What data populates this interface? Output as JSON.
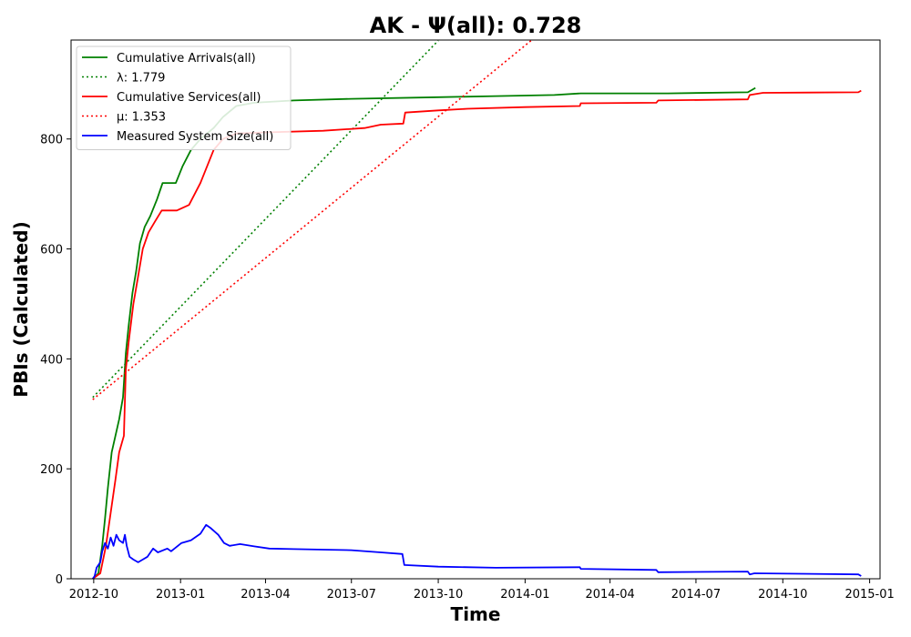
{
  "chart_data": {
    "type": "line",
    "title": "AK -  Ψ(all): 0.728",
    "xlabel": "Time",
    "ylabel": "PBIs (Calculated)",
    "xlim": [
      "2012-09-07",
      "2015-01-12"
    ],
    "ylim": [
      0,
      980
    ],
    "x_ticks": [
      "2012-10",
      "2013-01",
      "2013-04",
      "2013-07",
      "2013-10",
      "2014-01",
      "2014-04",
      "2014-07",
      "2014-10",
      "2015-01"
    ],
    "y_ticks": [
      0,
      200,
      400,
      600,
      800
    ],
    "grid": false,
    "legend_position": "upper-left",
    "series": [
      {
        "name": "Cumulative Arrivals(all)",
        "color": "#008000",
        "style": "solid",
        "points": [
          [
            "2012-09-30",
            0
          ],
          [
            "2012-10-06",
            10
          ],
          [
            "2012-10-10",
            60
          ],
          [
            "2012-10-13",
            110
          ],
          [
            "2012-10-16",
            165
          ],
          [
            "2012-10-20",
            230
          ],
          [
            "2012-10-24",
            260
          ],
          [
            "2012-10-28",
            290
          ],
          [
            "2012-11-01",
            330
          ],
          [
            "2012-11-04",
            410
          ],
          [
            "2012-11-07",
            460
          ],
          [
            "2012-11-11",
            520
          ],
          [
            "2012-11-15",
            560
          ],
          [
            "2012-11-19",
            610
          ],
          [
            "2012-11-24",
            640
          ],
          [
            "2012-11-30",
            660
          ],
          [
            "2012-12-07",
            690
          ],
          [
            "2012-12-13",
            720
          ],
          [
            "2012-12-27",
            720
          ],
          [
            "2013-01-03",
            750
          ],
          [
            "2013-01-12",
            780
          ],
          [
            "2013-01-22",
            800
          ],
          [
            "2013-02-05",
            820
          ],
          [
            "2013-02-15",
            840
          ],
          [
            "2013-03-01",
            860
          ],
          [
            "2013-03-20",
            866
          ],
          [
            "2013-05-01",
            870
          ],
          [
            "2013-07-01",
            873
          ],
          [
            "2013-10-01",
            876
          ],
          [
            "2013-12-01",
            878
          ],
          [
            "2014-02-01",
            880
          ],
          [
            "2014-03-01",
            883
          ],
          [
            "2014-06-01",
            883
          ],
          [
            "2014-08-25",
            885
          ],
          [
            "2014-09-02",
            893
          ]
        ]
      },
      {
        "name": "λ: 1.779",
        "color": "#008000",
        "style": "dotted",
        "points": [
          [
            "2012-09-30",
            330
          ],
          [
            "2013-10-01",
            979
          ]
        ]
      },
      {
        "name": "Cumulative Services(all)",
        "color": "#ff0000",
        "style": "solid",
        "points": [
          [
            "2012-09-30",
            0
          ],
          [
            "2012-10-08",
            10
          ],
          [
            "2012-10-14",
            60
          ],
          [
            "2012-10-19",
            120
          ],
          [
            "2012-10-24",
            180
          ],
          [
            "2012-10-28",
            230
          ],
          [
            "2012-11-02",
            260
          ],
          [
            "2012-11-04",
            380
          ],
          [
            "2012-11-07",
            430
          ],
          [
            "2012-11-12",
            500
          ],
          [
            "2012-11-17",
            550
          ],
          [
            "2012-11-22",
            600
          ],
          [
            "2012-11-28",
            630
          ],
          [
            "2012-12-05",
            650
          ],
          [
            "2012-12-12",
            670
          ],
          [
            "2012-12-28",
            670
          ],
          [
            "2013-01-10",
            680
          ],
          [
            "2013-01-22",
            720
          ],
          [
            "2013-02-05",
            780
          ],
          [
            "2013-02-15",
            800
          ],
          [
            "2013-03-01",
            810
          ],
          [
            "2013-04-01",
            812
          ],
          [
            "2013-06-01",
            815
          ],
          [
            "2013-07-15",
            820
          ],
          [
            "2013-08-01",
            826
          ],
          [
            "2013-08-25",
            828
          ],
          [
            "2013-08-27",
            848
          ],
          [
            "2013-10-01",
            852
          ],
          [
            "2013-11-01",
            855
          ],
          [
            "2014-01-01",
            858
          ],
          [
            "2014-02-28",
            860
          ],
          [
            "2014-03-01",
            865
          ],
          [
            "2014-05-20",
            866
          ],
          [
            "2014-05-22",
            870
          ],
          [
            "2014-08-25",
            872
          ],
          [
            "2014-08-27",
            880
          ],
          [
            "2014-09-10",
            884
          ],
          [
            "2014-12-20",
            885
          ],
          [
            "2014-12-23",
            888
          ]
        ]
      },
      {
        "name": "μ: 1.353",
        "color": "#ff0000",
        "style": "dotted",
        "points": [
          [
            "2012-09-30",
            326
          ],
          [
            "2014-01-08",
            980
          ]
        ]
      },
      {
        "name": "Measured System Size(all)",
        "color": "#0000ff",
        "style": "solid",
        "points": [
          [
            "2012-09-30",
            0
          ],
          [
            "2012-10-02",
            5
          ],
          [
            "2012-10-04",
            20
          ],
          [
            "2012-10-08",
            30
          ],
          [
            "2012-10-10",
            50
          ],
          [
            "2012-10-13",
            65
          ],
          [
            "2012-10-16",
            55
          ],
          [
            "2012-10-19",
            75
          ],
          [
            "2012-10-22",
            60
          ],
          [
            "2012-10-25",
            80
          ],
          [
            "2012-10-28",
            70
          ],
          [
            "2012-11-01",
            65
          ],
          [
            "2012-11-03",
            80
          ],
          [
            "2012-11-05",
            60
          ],
          [
            "2012-11-08",
            40
          ],
          [
            "2012-11-12",
            35
          ],
          [
            "2012-11-17",
            30
          ],
          [
            "2012-11-22",
            35
          ],
          [
            "2012-11-27",
            40
          ],
          [
            "2012-12-03",
            55
          ],
          [
            "2012-12-08",
            48
          ],
          [
            "2012-12-18",
            55
          ],
          [
            "2012-12-22",
            50
          ],
          [
            "2013-01-02",
            65
          ],
          [
            "2013-01-12",
            70
          ],
          [
            "2013-01-22",
            82
          ],
          [
            "2013-01-28",
            98
          ],
          [
            "2013-02-02",
            92
          ],
          [
            "2013-02-10",
            80
          ],
          [
            "2013-02-16",
            65
          ],
          [
            "2013-02-22",
            60
          ],
          [
            "2013-03-05",
            63
          ],
          [
            "2013-03-20",
            59
          ],
          [
            "2013-04-05",
            55
          ],
          [
            "2013-05-01",
            54
          ],
          [
            "2013-06-01",
            53
          ],
          [
            "2013-07-01",
            52
          ],
          [
            "2013-08-01",
            48
          ],
          [
            "2013-08-24",
            45
          ],
          [
            "2013-08-26",
            25
          ],
          [
            "2013-10-01",
            22
          ],
          [
            "2013-12-01",
            20
          ],
          [
            "2014-02-28",
            21
          ],
          [
            "2014-03-01",
            18
          ],
          [
            "2014-05-20",
            16
          ],
          [
            "2014-05-22",
            12
          ],
          [
            "2014-08-25",
            13
          ],
          [
            "2014-08-27",
            8
          ],
          [
            "2014-09-01",
            10
          ],
          [
            "2014-12-20",
            8
          ],
          [
            "2014-12-23",
            5
          ]
        ]
      }
    ]
  }
}
